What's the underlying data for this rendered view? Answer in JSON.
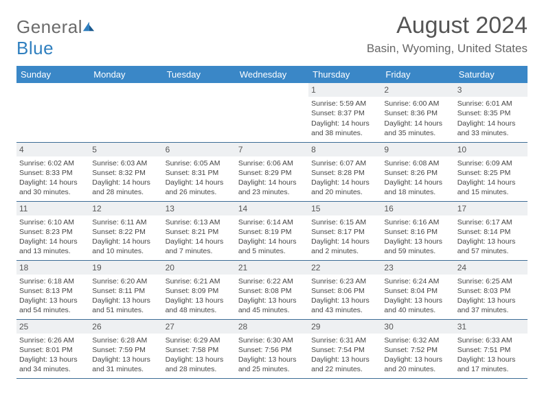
{
  "logo": {
    "word1": "General",
    "word2": "Blue"
  },
  "title": "August 2024",
  "location": "Basin, Wyoming, United States",
  "colors": {
    "header_bg": "#3a87c7",
    "header_text": "#ffffff",
    "daynum_bg": "#eef0f2",
    "border": "#3a6a94",
    "body_text": "#444444",
    "title_text": "#555555",
    "logo_gray": "#6b6b6b",
    "logo_blue": "#2f7fbf"
  },
  "typography": {
    "title_fontsize": 34,
    "location_fontsize": 17,
    "header_fontsize": 13,
    "daynum_fontsize": 12,
    "cell_fontsize": 10.5
  },
  "day_headers": [
    "Sunday",
    "Monday",
    "Tuesday",
    "Wednesday",
    "Thursday",
    "Friday",
    "Saturday"
  ],
  "weeks": [
    [
      {
        "n": "",
        "sr": "",
        "ss": "",
        "dl": ""
      },
      {
        "n": "",
        "sr": "",
        "ss": "",
        "dl": ""
      },
      {
        "n": "",
        "sr": "",
        "ss": "",
        "dl": ""
      },
      {
        "n": "",
        "sr": "",
        "ss": "",
        "dl": ""
      },
      {
        "n": "1",
        "sr": "Sunrise: 5:59 AM",
        "ss": "Sunset: 8:37 PM",
        "dl": "Daylight: 14 hours and 38 minutes."
      },
      {
        "n": "2",
        "sr": "Sunrise: 6:00 AM",
        "ss": "Sunset: 8:36 PM",
        "dl": "Daylight: 14 hours and 35 minutes."
      },
      {
        "n": "3",
        "sr": "Sunrise: 6:01 AM",
        "ss": "Sunset: 8:35 PM",
        "dl": "Daylight: 14 hours and 33 minutes."
      }
    ],
    [
      {
        "n": "4",
        "sr": "Sunrise: 6:02 AM",
        "ss": "Sunset: 8:33 PM",
        "dl": "Daylight: 14 hours and 30 minutes."
      },
      {
        "n": "5",
        "sr": "Sunrise: 6:03 AM",
        "ss": "Sunset: 8:32 PM",
        "dl": "Daylight: 14 hours and 28 minutes."
      },
      {
        "n": "6",
        "sr": "Sunrise: 6:05 AM",
        "ss": "Sunset: 8:31 PM",
        "dl": "Daylight: 14 hours and 26 minutes."
      },
      {
        "n": "7",
        "sr": "Sunrise: 6:06 AM",
        "ss": "Sunset: 8:29 PM",
        "dl": "Daylight: 14 hours and 23 minutes."
      },
      {
        "n": "8",
        "sr": "Sunrise: 6:07 AM",
        "ss": "Sunset: 8:28 PM",
        "dl": "Daylight: 14 hours and 20 minutes."
      },
      {
        "n": "9",
        "sr": "Sunrise: 6:08 AM",
        "ss": "Sunset: 8:26 PM",
        "dl": "Daylight: 14 hours and 18 minutes."
      },
      {
        "n": "10",
        "sr": "Sunrise: 6:09 AM",
        "ss": "Sunset: 8:25 PM",
        "dl": "Daylight: 14 hours and 15 minutes."
      }
    ],
    [
      {
        "n": "11",
        "sr": "Sunrise: 6:10 AM",
        "ss": "Sunset: 8:23 PM",
        "dl": "Daylight: 14 hours and 13 minutes."
      },
      {
        "n": "12",
        "sr": "Sunrise: 6:11 AM",
        "ss": "Sunset: 8:22 PM",
        "dl": "Daylight: 14 hours and 10 minutes."
      },
      {
        "n": "13",
        "sr": "Sunrise: 6:13 AM",
        "ss": "Sunset: 8:21 PM",
        "dl": "Daylight: 14 hours and 7 minutes."
      },
      {
        "n": "14",
        "sr": "Sunrise: 6:14 AM",
        "ss": "Sunset: 8:19 PM",
        "dl": "Daylight: 14 hours and 5 minutes."
      },
      {
        "n": "15",
        "sr": "Sunrise: 6:15 AM",
        "ss": "Sunset: 8:17 PM",
        "dl": "Daylight: 14 hours and 2 minutes."
      },
      {
        "n": "16",
        "sr": "Sunrise: 6:16 AM",
        "ss": "Sunset: 8:16 PM",
        "dl": "Daylight: 13 hours and 59 minutes."
      },
      {
        "n": "17",
        "sr": "Sunrise: 6:17 AM",
        "ss": "Sunset: 8:14 PM",
        "dl": "Daylight: 13 hours and 57 minutes."
      }
    ],
    [
      {
        "n": "18",
        "sr": "Sunrise: 6:18 AM",
        "ss": "Sunset: 8:13 PM",
        "dl": "Daylight: 13 hours and 54 minutes."
      },
      {
        "n": "19",
        "sr": "Sunrise: 6:20 AM",
        "ss": "Sunset: 8:11 PM",
        "dl": "Daylight: 13 hours and 51 minutes."
      },
      {
        "n": "20",
        "sr": "Sunrise: 6:21 AM",
        "ss": "Sunset: 8:09 PM",
        "dl": "Daylight: 13 hours and 48 minutes."
      },
      {
        "n": "21",
        "sr": "Sunrise: 6:22 AM",
        "ss": "Sunset: 8:08 PM",
        "dl": "Daylight: 13 hours and 45 minutes."
      },
      {
        "n": "22",
        "sr": "Sunrise: 6:23 AM",
        "ss": "Sunset: 8:06 PM",
        "dl": "Daylight: 13 hours and 43 minutes."
      },
      {
        "n": "23",
        "sr": "Sunrise: 6:24 AM",
        "ss": "Sunset: 8:04 PM",
        "dl": "Daylight: 13 hours and 40 minutes."
      },
      {
        "n": "24",
        "sr": "Sunrise: 6:25 AM",
        "ss": "Sunset: 8:03 PM",
        "dl": "Daylight: 13 hours and 37 minutes."
      }
    ],
    [
      {
        "n": "25",
        "sr": "Sunrise: 6:26 AM",
        "ss": "Sunset: 8:01 PM",
        "dl": "Daylight: 13 hours and 34 minutes."
      },
      {
        "n": "26",
        "sr": "Sunrise: 6:28 AM",
        "ss": "Sunset: 7:59 PM",
        "dl": "Daylight: 13 hours and 31 minutes."
      },
      {
        "n": "27",
        "sr": "Sunrise: 6:29 AM",
        "ss": "Sunset: 7:58 PM",
        "dl": "Daylight: 13 hours and 28 minutes."
      },
      {
        "n": "28",
        "sr": "Sunrise: 6:30 AM",
        "ss": "Sunset: 7:56 PM",
        "dl": "Daylight: 13 hours and 25 minutes."
      },
      {
        "n": "29",
        "sr": "Sunrise: 6:31 AM",
        "ss": "Sunset: 7:54 PM",
        "dl": "Daylight: 13 hours and 22 minutes."
      },
      {
        "n": "30",
        "sr": "Sunrise: 6:32 AM",
        "ss": "Sunset: 7:52 PM",
        "dl": "Daylight: 13 hours and 20 minutes."
      },
      {
        "n": "31",
        "sr": "Sunrise: 6:33 AM",
        "ss": "Sunset: 7:51 PM",
        "dl": "Daylight: 13 hours and 17 minutes."
      }
    ]
  ]
}
